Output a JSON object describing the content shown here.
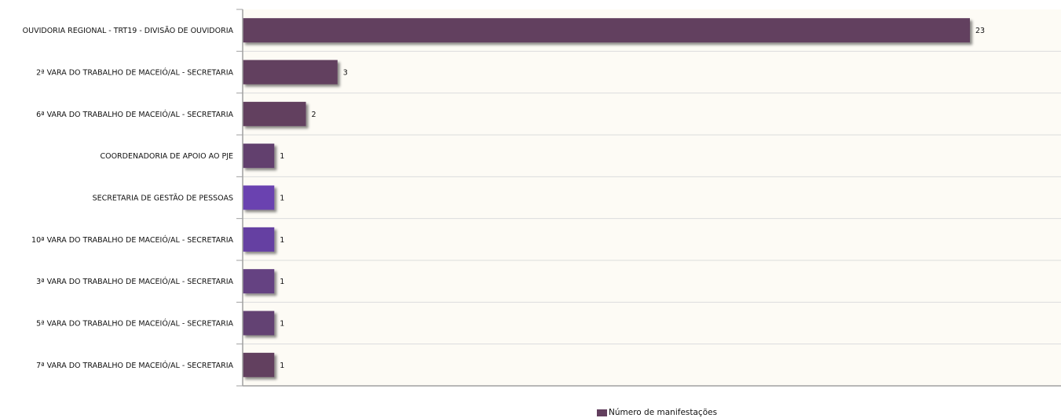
{
  "chart_data": {
    "type": "bar",
    "orientation": "horizontal",
    "categories": [
      "OUVIDORIA REGIONAL - TRT19 - DIVISÃO DE OUVIDORIA",
      "2ª VARA DO TRABALHO DE MACEIÓ/AL - SECRETARIA",
      "6ª VARA DO TRABALHO DE MACEIÓ/AL - SECRETARIA",
      "COORDENADORIA DE APOIO AO PJE",
      "SECRETARIA DE GESTÃO DE PESSOAS",
      "10ª VARA DO TRABALHO DE MACEIÓ/AL - SECRETARIA",
      "3ª VARA DO TRABALHO DE MACEIÓ/AL - SECRETARIA",
      "5ª VARA DO TRABALHO DE MACEIÓ/AL - SECRETARIA",
      "7ª VARA DO TRABALHO DE MACEIÓ/AL - SECRETARIA"
    ],
    "series": [
      {
        "name": "Número de manifestações",
        "values": [
          23,
          3,
          2,
          1,
          1,
          1,
          1,
          1,
          1
        ]
      }
    ],
    "bar_colors": [
      "#623f5e",
      "#623f5e",
      "#623f5e",
      "#62406e",
      "#6a42b0",
      "#6541a2",
      "#654382",
      "#634273",
      "#623f5e"
    ],
    "legend_color": "#623f5e",
    "plot_background": "#fdfbf5",
    "gridline_color": "#dcdcdc",
    "axis_color": "#a0a0a0",
    "xlim": [
      0,
      26
    ],
    "grid": true,
    "legend_position": "bottom-center"
  }
}
